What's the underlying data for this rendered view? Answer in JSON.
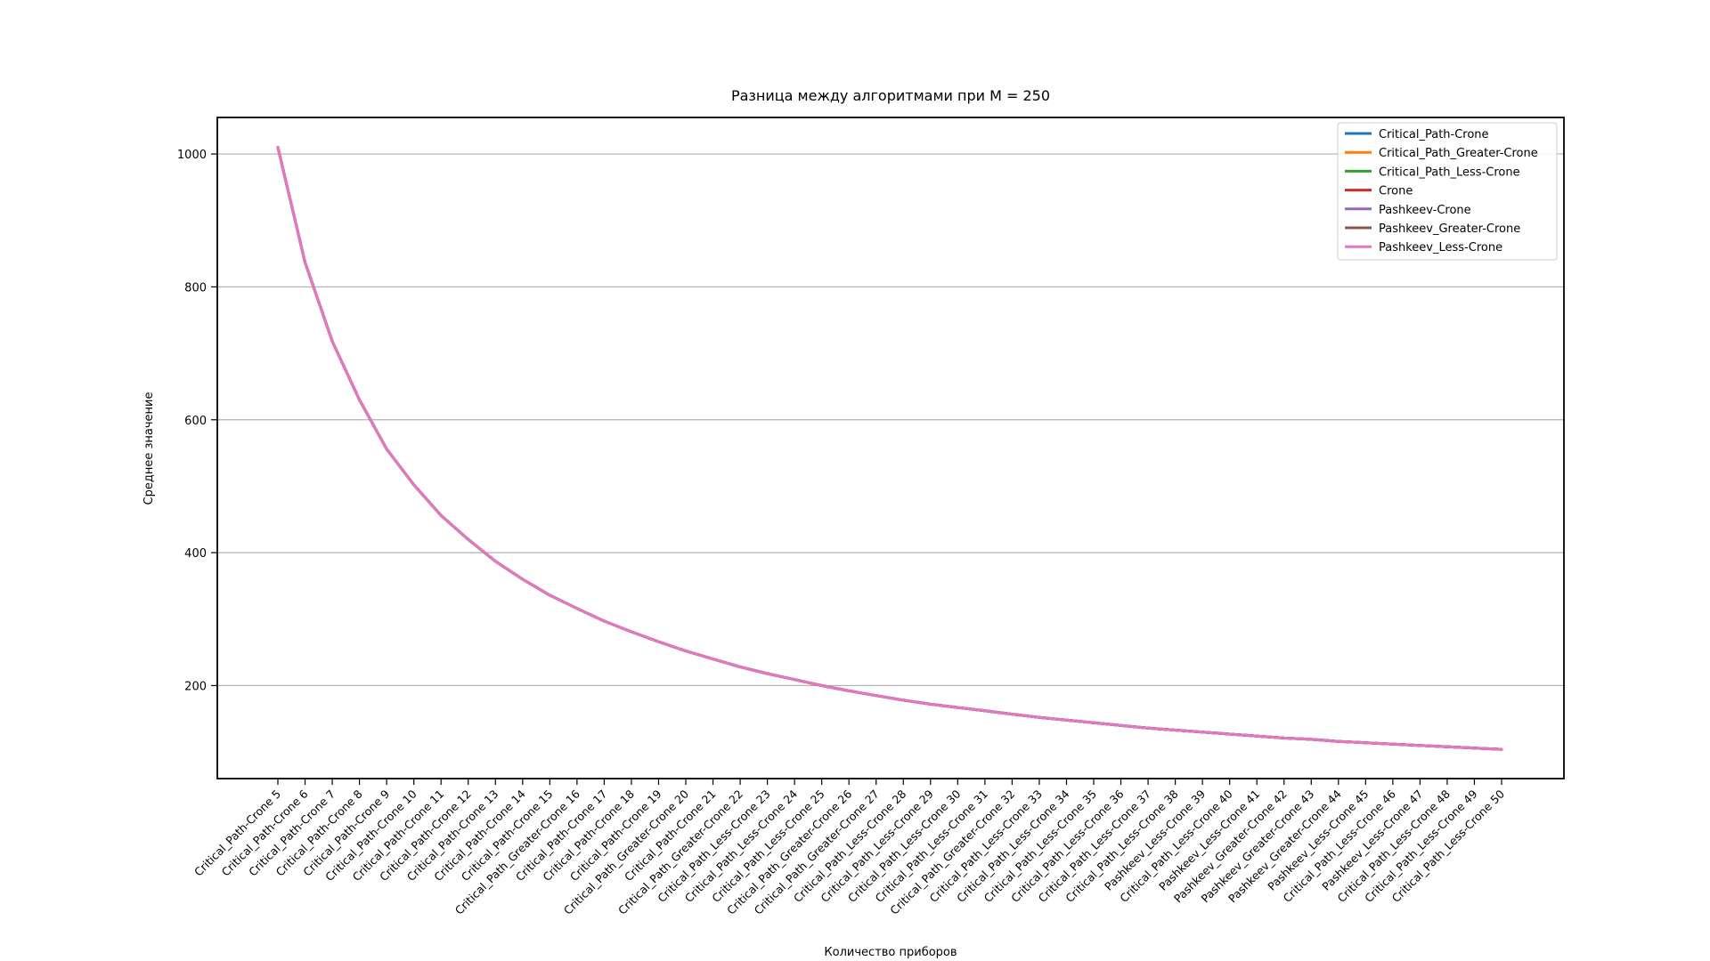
{
  "chart_data": {
    "type": "line",
    "title": "Разница между алгоритмами при M = 250",
    "xlabel": "Количество приборов",
    "ylabel": "Среднее значение",
    "ylim": [
      60,
      1055
    ],
    "yticks": [
      200,
      400,
      600,
      800,
      1000
    ],
    "grid": "horizontal",
    "legend_position": "top-right",
    "categories": [
      "Critical_Path-Crone 5",
      "Critical_Path-Crone 6",
      "Critical_Path-Crone 7",
      "Critical_Path-Crone 8",
      "Critical_Path-Crone 9",
      "Critical_Path-Crone 10",
      "Critical_Path-Crone 11",
      "Critical_Path-Crone 12",
      "Critical_Path-Crone 13",
      "Critical_Path-Crone 14",
      "Critical_Path-Crone 15",
      "Critical_Path_Greater-Crone 16",
      "Critical_Path-Crone 17",
      "Critical_Path-Crone 18",
      "Critical_Path-Crone 19",
      "Critical_Path_Greater-Crone 20",
      "Critical_Path-Crone 21",
      "Critical_Path_Greater-Crone 22",
      "Critical_Path_Less-Crone 23",
      "Critical_Path_Less-Crone 24",
      "Critical_Path_Less-Crone 25",
      "Critical_Path_Greater-Crone 26",
      "Critical_Path_Greater-Crone 27",
      "Critical_Path_Less-Crone 28",
      "Critical_Path_Less-Crone 29",
      "Critical_Path_Less-Crone 30",
      "Critical_Path_Less-Crone 31",
      "Critical_Path_Greater-Crone 32",
      "Critical_Path_Less-Crone 33",
      "Critical_Path_Less-Crone 34",
      "Critical_Path_Less-Crone 35",
      "Critical_Path_Less-Crone 36",
      "Critical_Path_Less-Crone 37",
      "Critical_Path_Less-Crone 38",
      "Pashkeev_Less-Crone 39",
      "Critical_Path_Less-Crone 40",
      "Pashkeev_Less-Crone 41",
      "Pashkeev_Greater-Crone 42",
      "Pashkeev_Greater-Crone 43",
      "Pashkeev_Greater-Crone 44",
      "Pashkeev_Less-Crone 45",
      "Critical_Path_Less-Crone 46",
      "Pashkeev_Less-Crone 47",
      "Critical_Path_Less-Crone 48",
      "Critical_Path_Less-Crone 49",
      "Critical_Path_Less-Crone 50"
    ],
    "series": [
      {
        "name": "Critical_Path-Crone",
        "color": "#1f77b4",
        "values": [
          1010,
          837,
          718,
          630,
          556,
          502,
          456,
          420,
          387,
          360,
          336,
          316,
          297,
          281,
          266,
          252,
          240,
          228,
          218,
          209,
          200,
          192,
          185,
          178,
          172,
          167,
          162,
          157,
          152,
          148,
          144,
          140,
          136,
          133,
          130,
          127,
          124,
          121,
          119,
          116,
          114,
          112,
          110,
          108,
          106,
          104
        ]
      },
      {
        "name": "Critical_Path_Greater-Crone",
        "color": "#ff7f0e",
        "values": [
          1010,
          837,
          718,
          630,
          556,
          502,
          456,
          420,
          387,
          360,
          336,
          316,
          297,
          281,
          266,
          252,
          240,
          228,
          218,
          209,
          200,
          192,
          185,
          178,
          172,
          167,
          162,
          157,
          152,
          148,
          144,
          140,
          136,
          133,
          130,
          127,
          124,
          121,
          119,
          116,
          114,
          112,
          110,
          108,
          106,
          104
        ]
      },
      {
        "name": "Critical_Path_Less-Crone",
        "color": "#2ca02c",
        "values": [
          1010,
          837,
          718,
          630,
          556,
          502,
          456,
          420,
          387,
          360,
          336,
          316,
          297,
          281,
          266,
          252,
          240,
          228,
          218,
          209,
          200,
          192,
          185,
          178,
          172,
          167,
          162,
          157,
          152,
          148,
          144,
          140,
          136,
          133,
          130,
          127,
          124,
          121,
          119,
          116,
          114,
          112,
          110,
          108,
          106,
          104
        ]
      },
      {
        "name": "Crone",
        "color": "#d62728",
        "values": [
          1010,
          837,
          718,
          630,
          556,
          502,
          456,
          420,
          387,
          360,
          336,
          316,
          297,
          281,
          266,
          252,
          240,
          228,
          218,
          209,
          200,
          192,
          185,
          178,
          172,
          167,
          162,
          157,
          152,
          148,
          144,
          140,
          136,
          133,
          130,
          127,
          124,
          121,
          119,
          116,
          114,
          112,
          110,
          108,
          106,
          104
        ]
      },
      {
        "name": "Pashkeev-Crone",
        "color": "#9467bd",
        "values": [
          1010,
          837,
          718,
          630,
          556,
          502,
          456,
          420,
          387,
          360,
          336,
          316,
          297,
          281,
          266,
          252,
          240,
          228,
          218,
          209,
          200,
          192,
          185,
          178,
          172,
          167,
          162,
          157,
          152,
          148,
          144,
          140,
          136,
          133,
          130,
          127,
          124,
          121,
          119,
          116,
          114,
          112,
          110,
          108,
          106,
          104
        ]
      },
      {
        "name": "Pashkeev_Greater-Crone",
        "color": "#8c564b",
        "values": [
          1010,
          837,
          718,
          630,
          556,
          502,
          456,
          420,
          387,
          360,
          336,
          316,
          297,
          281,
          266,
          252,
          240,
          228,
          218,
          209,
          200,
          192,
          185,
          178,
          172,
          167,
          162,
          157,
          152,
          148,
          144,
          140,
          136,
          133,
          130,
          127,
          124,
          121,
          119,
          116,
          114,
          112,
          110,
          108,
          106,
          104
        ]
      },
      {
        "name": "Pashkeev_Less-Crone",
        "color": "#e377c2",
        "values": [
          1010,
          837,
          718,
          630,
          556,
          502,
          456,
          420,
          387,
          360,
          336,
          316,
          297,
          281,
          266,
          252,
          240,
          228,
          218,
          209,
          200,
          192,
          185,
          178,
          172,
          167,
          162,
          157,
          152,
          148,
          144,
          140,
          136,
          133,
          130,
          127,
          124,
          121,
          119,
          116,
          114,
          112,
          110,
          108,
          106,
          104
        ]
      }
    ]
  }
}
